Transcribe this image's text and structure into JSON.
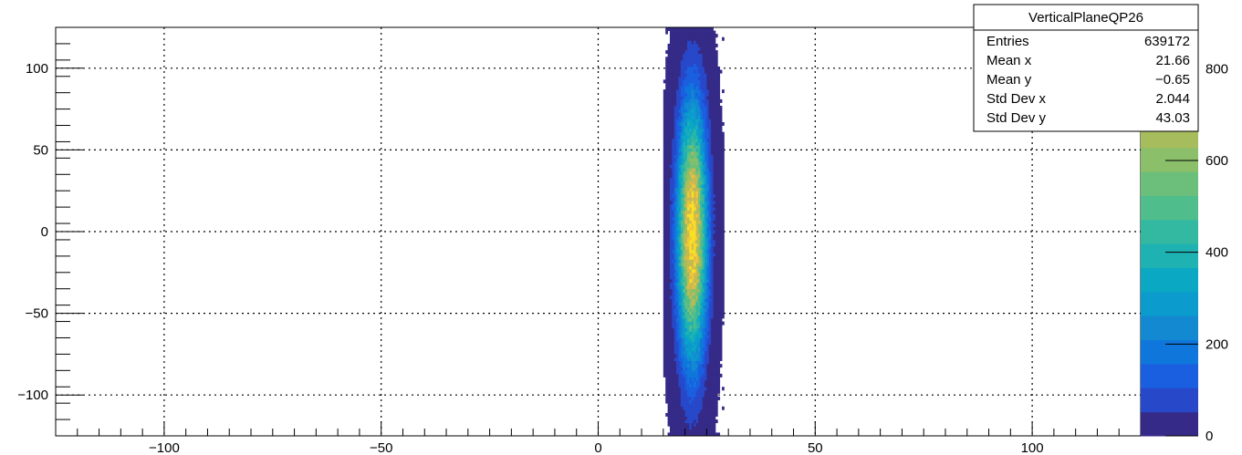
{
  "chart_data": {
    "type": "heatmap",
    "title": "",
    "xlabel": "",
    "ylabel": "",
    "xlim": [
      -125,
      125
    ],
    "ylim": [
      -125,
      125
    ],
    "x_ticks": [
      -100,
      -50,
      0,
      50,
      100
    ],
    "x_tick_labels": [
      "−100",
      "−50",
      "0",
      "50",
      "100"
    ],
    "y_ticks": [
      -100,
      -50,
      0,
      50,
      100
    ],
    "y_tick_labels": [
      "−100",
      "−50",
      "0",
      "50",
      "100"
    ],
    "grid": true,
    "colorbar": {
      "min": 0,
      "max": 890,
      "ticks": [
        0,
        200,
        400,
        600,
        800
      ],
      "tick_labels": [
        "0",
        "200",
        "400",
        "600",
        "800"
      ],
      "palette": [
        "#352a87",
        "#2748c9",
        "#1a5fe0",
        "#0f77db",
        "#1389d2",
        "#0b9bcd",
        "#0aa8c3",
        "#1fb2b3",
        "#33b8a1",
        "#4fbd8c",
        "#6cbf7a",
        "#8bbf6a",
        "#a7bd5d",
        "#c2b954",
        "#d9b94a",
        "#f0c53b",
        "#f9e024"
      ]
    },
    "distribution": {
      "entries": 639172,
      "mean_x": 21.66,
      "mean_y": -0.65,
      "std_x": 2.044,
      "std_y": 43.03,
      "x_range": [
        15,
        33
      ],
      "y_range": [
        -125,
        125
      ],
      "peak_count": 890
    }
  },
  "stats_box": {
    "title": "VerticalPlaneQP26",
    "rows": [
      {
        "label": "Entries",
        "value": "639172"
      },
      {
        "label": "Mean x",
        "value": "21.66"
      },
      {
        "label": "Mean y",
        "value": "−0.65"
      },
      {
        "label": "Std Dev x",
        "value": "2.044"
      },
      {
        "label": "Std Dev y",
        "value": "43.03"
      }
    ]
  }
}
